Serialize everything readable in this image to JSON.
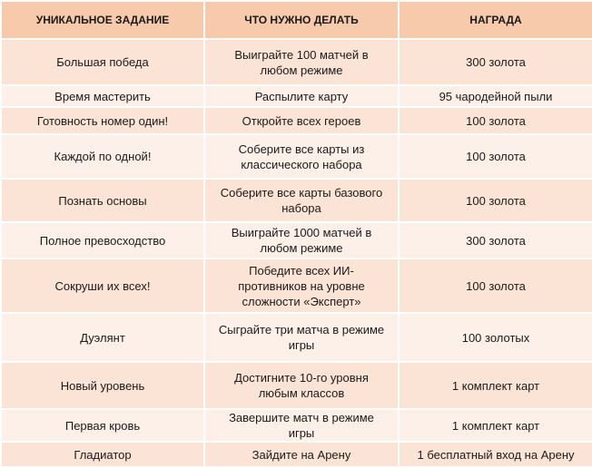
{
  "table": {
    "header": [
      "УНИКАЛЬНОЕ ЗАДАНИЕ",
      "ЧТО НУЖНО ДЕЛАТЬ",
      "НАГРАДА"
    ],
    "rows": [
      [
        "Большая победа",
        "Выиграйте 100 матчей в любом режиме",
        "300 золота"
      ],
      [
        "Время мастерить",
        "Распылите карту",
        "95 чародейной пыли"
      ],
      [
        "Готовность номер один!",
        "Откройте всех героев",
        "100 золота"
      ],
      [
        "Каждой по одной!",
        "Соберите все карты из классического набора",
        "100 золота"
      ],
      [
        "Познать основы",
        "Соберите все карты базового набора",
        "100 золота"
      ],
      [
        "Полное превосходство",
        "Выиграйте 1000 матчей в любом режиме",
        "300 золота"
      ],
      [
        "Сокруши их всех!",
        "Победите всех ИИ-противников на уровне сложности «Эксперт»",
        "100 золота"
      ],
      [
        "Дуэлянт",
        "Сыграйте три матча в режиме игры",
        "100 золотых"
      ],
      [
        "Новый уровень",
        "Достигните 10-го уровня любым классов",
        "1 комплект карт"
      ],
      [
        "Первая кровь",
        "Завершите матч в режиме игры",
        "1 комплект карт"
      ],
      [
        "Гладиатор",
        "Зайдите на Арену",
        "1 бесплатный вход на Арену"
      ]
    ]
  }
}
